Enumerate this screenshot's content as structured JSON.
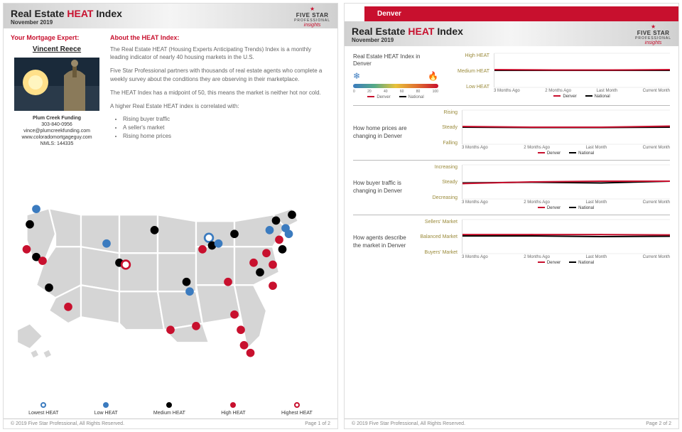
{
  "report": {
    "title_prefix": "Real Estate ",
    "title_heat": "HEAT",
    "title_suffix": " Index",
    "date": "November 2019",
    "copyright": "© 2019 Five Star Professional, All Rights Reserved.",
    "page1_num": "Page 1 of 2",
    "page2_num": "Page 2 of 2"
  },
  "branding": {
    "company_line1": "FIVE STAR",
    "company_line2": "PROFESSIONAL",
    "product": "insights"
  },
  "expert": {
    "section_title": "Your Mortgage Expert:",
    "name": "Vincent Reece",
    "company": "Plum Creek Funding",
    "phone": "303-840-0956",
    "email": "vince@plumcreekfunding.com",
    "website": "www.coloradomortgageguy.com",
    "nmls": "NMLS: 144335"
  },
  "about": {
    "section_title": "About the HEAT Index:",
    "p1": "The Real Estate HEAT (Housing Experts Anticipating Trends) Index is a monthly leading indicator of nearly 40 housing markets in the U.S.",
    "p2": "Five Star Professional partners with thousands of real estate agents who complete a weekly survey about the conditions they are observing in their marketplace.",
    "p3": "The HEAT Index has a midpoint of 50, this means the market is neither hot nor cold.",
    "p4": "A higher Real Estate HEAT index is correlated with:",
    "bullets": [
      "Rising buyer traffic",
      "A seller's market",
      "Rising home prices"
    ]
  },
  "map_legend": [
    {
      "label": "Lowest HEAT",
      "fill": "#ffffff",
      "stroke": "#3b7bbf"
    },
    {
      "label": "Low HEAT",
      "fill": "#3b7bbf",
      "stroke": "#3b7bbf"
    },
    {
      "label": "Medium HEAT",
      "fill": "#000000",
      "stroke": "#000000"
    },
    {
      "label": "High HEAT",
      "fill": "#c8102e",
      "stroke": "#c8102e"
    },
    {
      "label": "Highest HEAT",
      "fill": "#ffffff",
      "stroke": "#c8102e"
    }
  ],
  "map_markers": [
    {
      "x": 8,
      "y": 17,
      "c": "#3b7bbf",
      "open": false
    },
    {
      "x": 6,
      "y": 25,
      "c": "#000000",
      "open": false
    },
    {
      "x": 5,
      "y": 38,
      "c": "#c8102e",
      "open": false
    },
    {
      "x": 8,
      "y": 42,
      "c": "#000000",
      "open": false
    },
    {
      "x": 10,
      "y": 44,
      "c": "#c8102e",
      "open": false
    },
    {
      "x": 12,
      "y": 58,
      "c": "#000000",
      "open": false
    },
    {
      "x": 18,
      "y": 68,
      "c": "#c8102e",
      "open": false
    },
    {
      "x": 30,
      "y": 35,
      "c": "#3b7bbf",
      "open": false
    },
    {
      "x": 34,
      "y": 45,
      "c": "#000000",
      "open": false
    },
    {
      "x": 36,
      "y": 46,
      "c": "#c8102e",
      "open": true
    },
    {
      "x": 45,
      "y": 28,
      "c": "#000000",
      "open": false
    },
    {
      "x": 50,
      "y": 80,
      "c": "#c8102e",
      "open": false
    },
    {
      "x": 55,
      "y": 55,
      "c": "#000000",
      "open": false
    },
    {
      "x": 56,
      "y": 60,
      "c": "#3b7bbf",
      "open": false
    },
    {
      "x": 58,
      "y": 78,
      "c": "#c8102e",
      "open": false
    },
    {
      "x": 60,
      "y": 38,
      "c": "#c8102e",
      "open": false
    },
    {
      "x": 62,
      "y": 32,
      "c": "#3b7bbf",
      "open": true
    },
    {
      "x": 63,
      "y": 36,
      "c": "#000000",
      "open": false
    },
    {
      "x": 65,
      "y": 35,
      "c": "#3b7bbf",
      "open": false
    },
    {
      "x": 68,
      "y": 55,
      "c": "#c8102e",
      "open": false
    },
    {
      "x": 70,
      "y": 30,
      "c": "#000000",
      "open": false
    },
    {
      "x": 70,
      "y": 72,
      "c": "#c8102e",
      "open": false
    },
    {
      "x": 72,
      "y": 80,
      "c": "#c8102e",
      "open": false
    },
    {
      "x": 73,
      "y": 88,
      "c": "#c8102e",
      "open": false
    },
    {
      "x": 75,
      "y": 92,
      "c": "#c8102e",
      "open": false
    },
    {
      "x": 76,
      "y": 45,
      "c": "#c8102e",
      "open": false
    },
    {
      "x": 78,
      "y": 50,
      "c": "#000000",
      "open": false
    },
    {
      "x": 80,
      "y": 40,
      "c": "#c8102e",
      "open": false
    },
    {
      "x": 81,
      "y": 28,
      "c": "#3b7bbf",
      "open": false
    },
    {
      "x": 82,
      "y": 57,
      "c": "#c8102e",
      "open": false
    },
    {
      "x": 83,
      "y": 23,
      "c": "#000000",
      "open": false
    },
    {
      "x": 84,
      "y": 33,
      "c": "#c8102e",
      "open": false
    },
    {
      "x": 85,
      "y": 38,
      "c": "#000000",
      "open": false
    },
    {
      "x": 86,
      "y": 27,
      "c": "#3b7bbf",
      "open": false
    },
    {
      "x": 87,
      "y": 30,
      "c": "#3b7bbf",
      "open": false
    },
    {
      "x": 88,
      "y": 20,
      "c": "#000000",
      "open": false
    },
    {
      "x": 82,
      "y": 46,
      "c": "#c8102e",
      "open": false
    }
  ],
  "city": "Denver",
  "charts": {
    "x_labels": [
      "3 Months Ago",
      "2 Months Ago",
      "Last Month",
      "Current Month"
    ],
    "legend_local": "Denver",
    "legend_national": "National",
    "gauge_ticks": [
      "0",
      "20",
      "40",
      "60",
      "80",
      "100"
    ],
    "series": [
      {
        "title": "Real Estate HEAT Index in Denver",
        "y_labels": [
          "High HEAT",
          "Medium HEAT",
          "Low HEAT"
        ],
        "denver": [
          52,
          51,
          51,
          52
        ],
        "national": [
          50,
          50,
          50,
          50
        ],
        "ymin": 0,
        "ymax": 100
      },
      {
        "title": "How home prices are changing in Denver",
        "y_labels": [
          "Rising",
          "Steady",
          "Falling"
        ],
        "denver": [
          52,
          50,
          50,
          53
        ],
        "national": [
          50,
          49,
          49,
          50
        ],
        "ymin": 0,
        "ymax": 100
      },
      {
        "title": "How buyer traffic is changing in Denver",
        "y_labels": [
          "Increasing",
          "Steady",
          "Decreasing"
        ],
        "denver": [
          45,
          50,
          52,
          52
        ],
        "national": [
          47,
          49,
          47,
          52
        ],
        "ymin": 0,
        "ymax": 100
      },
      {
        "title": "How agents describe the market in Denver",
        "y_labels": [
          "Sellers' Market",
          "Balanced Market",
          "Buyers' Market"
        ],
        "denver": [
          56,
          56,
          56,
          55
        ],
        "national": [
          52,
          52,
          50,
          51
        ],
        "ymin": 0,
        "ymax": 100
      }
    ]
  },
  "colors": {
    "accent": "#c8102e",
    "national": "#000000",
    "y_label": "#9a8a3a",
    "grid": "#eeeeee"
  }
}
